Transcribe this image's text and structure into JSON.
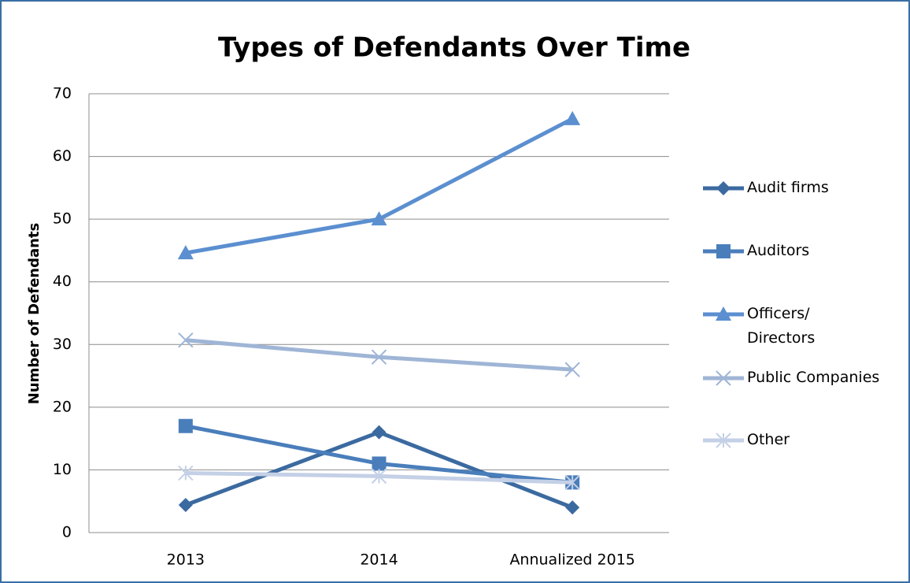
{
  "chart_data": {
    "type": "line",
    "title": "Types of Defendants Over Time",
    "y_label": "Number of Defendants",
    "categories": [
      "2013",
      "2014",
      "Annualized 2015"
    ],
    "series": [
      {
        "name": "Audit firms",
        "color": "#3b6aa0",
        "marker": "diamond",
        "values": [
          4.4,
          16,
          4
        ]
      },
      {
        "name": "Auditors",
        "color": "#4a7ebb",
        "marker": "square",
        "values": [
          17,
          11,
          8
        ]
      },
      {
        "name": "Officers/\nDirectors",
        "color": "#5b8fd0",
        "marker": "triangle",
        "values": [
          44.6,
          50,
          66
        ]
      },
      {
        "name": "Public Companies",
        "color": "#9fb5d6",
        "marker": "x",
        "values": [
          30.7,
          28,
          26
        ]
      },
      {
        "name": "Other",
        "color": "#c4d0e6",
        "marker": "star",
        "values": [
          9.5,
          9,
          8
        ]
      }
    ],
    "ylim": [
      0,
      70
    ],
    "yticks": [
      0,
      10,
      20,
      30,
      40,
      50,
      60,
      70
    ],
    "grid": true,
    "legend": "right"
  }
}
